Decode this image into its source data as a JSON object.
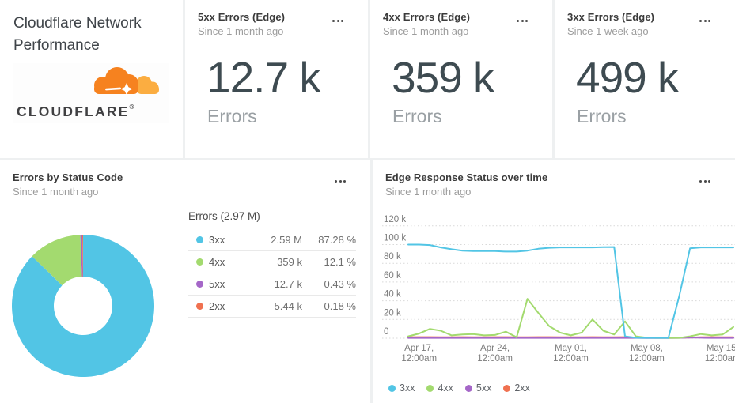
{
  "header_card": {
    "title": "Cloudflare Network Performance",
    "logo_text": "CLOUDFLARE",
    "logo_reg": "®"
  },
  "stat_cards": [
    {
      "title": "5xx Errors (Edge)",
      "subtitle": "Since 1 month ago",
      "value": "12.7 k",
      "label": "Errors"
    },
    {
      "title": "4xx Errors (Edge)",
      "subtitle": "Since 1 month ago",
      "value": "359 k",
      "label": "Errors"
    },
    {
      "title": "3xx Errors (Edge)",
      "subtitle": "Since 1 week ago",
      "value": "499 k",
      "label": "Errors"
    }
  ],
  "donut_card": {
    "title": "Errors by Status Code",
    "subtitle": "Since 1 month ago",
    "legend_title": "Errors (2.97 M)"
  },
  "line_card": {
    "title": "Edge Response Status over time",
    "subtitle": "Since 1 month ago"
  },
  "colors": {
    "c3xx": "#52c5e5",
    "c4xx": "#a3da6f",
    "c5xx": "#a567c8",
    "c2xx": "#f07150",
    "logo_orange": "#f6821f",
    "logo_light_orange": "#fbad41",
    "grid": "#d9d9d9",
    "axis_text": "#7c7c7c"
  },
  "chart_data": [
    {
      "type": "pie",
      "donut": true,
      "title": "Errors by Status Code",
      "total_label": "Errors (2.97 M)",
      "slices": [
        {
          "label": "3xx",
          "count": "2.59 M",
          "percent": 87.28,
          "percent_label": "87.28 %",
          "color": "#52c5e5"
        },
        {
          "label": "4xx",
          "count": "359 k",
          "percent": 12.1,
          "percent_label": "12.1 %",
          "color": "#a3da6f"
        },
        {
          "label": "5xx",
          "count": "12.7 k",
          "percent": 0.43,
          "percent_label": "0.43 %",
          "color": "#a567c8"
        },
        {
          "label": "2xx",
          "count": "5.44 k",
          "percent": 0.18,
          "percent_label": "0.18 %",
          "color": "#f07150"
        }
      ]
    },
    {
      "type": "line",
      "title": "Edge Response Status over time",
      "x_unit": "day",
      "x_range": [
        "Apr 16",
        "May 16"
      ],
      "ylim": [
        0,
        120
      ],
      "y_unit": "k",
      "grid": true,
      "legend_position": "bottom",
      "y_ticks": [
        {
          "v": 0,
          "label": "0"
        },
        {
          "v": 20,
          "label": "20 k"
        },
        {
          "v": 40,
          "label": "40 k"
        },
        {
          "v": 60,
          "label": "60 k"
        },
        {
          "v": 80,
          "label": "80 k"
        },
        {
          "v": 100,
          "label": "100 k"
        },
        {
          "v": 120,
          "label": "120 k"
        }
      ],
      "x_ticks": [
        {
          "i": 1,
          "line1": "Apr 17,",
          "line2": "12:00am"
        },
        {
          "i": 8,
          "line1": "Apr 24,",
          "line2": "12:00am"
        },
        {
          "i": 15,
          "line1": "May 01,",
          "line2": "12:00am"
        },
        {
          "i": 22,
          "line1": "May 08,",
          "line2": "12:00am"
        },
        {
          "i": 29,
          "line1": "May 15,",
          "line2": "12:00am"
        }
      ],
      "series": [
        {
          "name": "3xx",
          "color": "#52c5e5",
          "values": [
            100,
            100,
            99.5,
            97,
            95,
            93.5,
            93,
            93,
            93,
            92.5,
            92.5,
            93.5,
            95.5,
            96.5,
            97,
            97,
            97,
            97,
            97.2,
            97.4,
            2,
            0.4,
            0.3,
            0.3,
            0.3,
            45,
            96,
            97,
            97,
            97,
            97
          ]
        },
        {
          "name": "4xx",
          "color": "#a3da6f",
          "values": [
            2,
            5,
            10,
            8,
            3,
            4,
            4.5,
            3,
            3.5,
            7,
            1,
            42,
            27,
            13,
            6,
            3,
            6,
            20,
            8,
            4,
            18,
            2,
            0.5,
            0.3,
            0.3,
            0.3,
            2,
            4.5,
            3,
            4,
            12
          ]
        },
        {
          "name": "5xx",
          "color": "#a567c8",
          "values": [
            0.3,
            0.3,
            0.3,
            0.3,
            0.3,
            0.3,
            0.3,
            0.3,
            0.3,
            0.3,
            0.3,
            0.3,
            0.3,
            0.3,
            0.3,
            0.3,
            0.3,
            0.3,
            0.3,
            0.3,
            0.3,
            0.3,
            0.2,
            0.2,
            0.2,
            0.3,
            0.8,
            0.5,
            0.3,
            0.3,
            0.3
          ]
        },
        {
          "name": "2xx",
          "color": "#f07150",
          "values": [
            1,
            1.2,
            1.2,
            1,
            1,
            1.2,
            1,
            1,
            1.2,
            1.2,
            1,
            1,
            1.2,
            1.2,
            1,
            1,
            1,
            1.2,
            1,
            1,
            1.2,
            0.8,
            0.5,
            0.5,
            0.5,
            0.5,
            0.8,
            1,
            1.2,
            1,
            1
          ]
        }
      ]
    }
  ]
}
